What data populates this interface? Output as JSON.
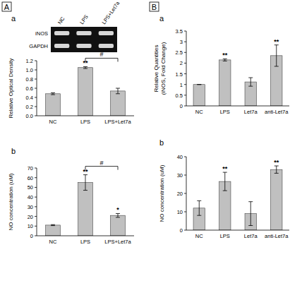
{
  "chart_data": [
    {
      "type": "bar",
      "panel": "a",
      "ylabel": "Relative Optical Density",
      "categories": [
        "NC",
        "LPS",
        "LPS+Let7a"
      ],
      "values": [
        0.48,
        1.05,
        0.54
      ],
      "errors": [
        0.02,
        0.02,
        0.06
      ],
      "annotations": [
        null,
        "**",
        null
      ],
      "comparison": {
        "categories": [
          "LPS",
          "LPS+Let7a"
        ],
        "label": "#"
      },
      "color": "#c0c0c0",
      "grid": false,
      "ylim": [
        0,
        1.2
      ],
      "yticks": [
        {
          "value": 0,
          "label": "0.0"
        },
        {
          "value": 0.2,
          "label": "0.2"
        },
        {
          "value": 0.4,
          "label": "0.4"
        },
        {
          "value": 0.6,
          "label": "0.6"
        },
        {
          "value": 0.8,
          "label": "0.8"
        },
        {
          "value": 1,
          "label": "1.0"
        },
        {
          "value": 1.2,
          "label": "1.2"
        }
      ]
    },
    {
      "type": "bar",
      "panel": "b",
      "ylabel": "NO concentration (uM)",
      "categories": [
        "NC",
        "LPS",
        "LPS+Let7a"
      ],
      "values": [
        11,
        55,
        21
      ],
      "errors": [
        0.5,
        8,
        2
      ],
      "annotations": [
        null,
        "**",
        "*"
      ],
      "comparison": {
        "categories": [
          "LPS",
          "LPS+Let7a"
        ],
        "label": "#"
      },
      "color": "#c0c0c0",
      "grid": false,
      "ylim": [
        0,
        70
      ],
      "yticks": [
        0,
        10,
        20,
        30,
        40,
        50,
        60,
        70
      ]
    },
    {
      "type": "bar",
      "panel": "a",
      "ylabel": [
        "Relative Quantities",
        "(iNOS, Fold Change)"
      ],
      "categories": [
        "NC",
        "LPS",
        "Let7a",
        "anti-Let7a"
      ],
      "values": [
        1,
        2.15,
        1.12,
        2.35
      ],
      "errors": [
        0,
        0.05,
        0.2,
        0.5
      ],
      "annotations": [
        null,
        "**",
        null,
        "**"
      ],
      "color": "#c0c0c0",
      "grid": false,
      "ylim": [
        0,
        3.5
      ],
      "yticks": [
        0,
        0.5,
        1,
        1.5,
        2,
        2.5,
        3,
        3.5
      ]
    },
    {
      "type": "bar",
      "panel": "b",
      "ylabel": "NO concentration (uM)",
      "categories": [
        "NC",
        "LPS",
        "Let7a",
        "anti-Let7a"
      ],
      "values": [
        12,
        26.5,
        9,
        33
      ],
      "errors": [
        4,
        5,
        6.5,
        2
      ],
      "annotations": [
        null,
        "**",
        null,
        "**"
      ],
      "color": "#c0c0c0",
      "grid": false,
      "ylim": [
        0,
        40
      ],
      "yticks": [
        0,
        10,
        20,
        30,
        40
      ]
    }
  ],
  "figure": {
    "panels": [
      "A",
      "B"
    ],
    "gel": {
      "lanes": [
        "NC",
        "LPS",
        "LPS+Let7a"
      ],
      "bands": [
        "iNOS",
        "GAPDH"
      ]
    }
  }
}
